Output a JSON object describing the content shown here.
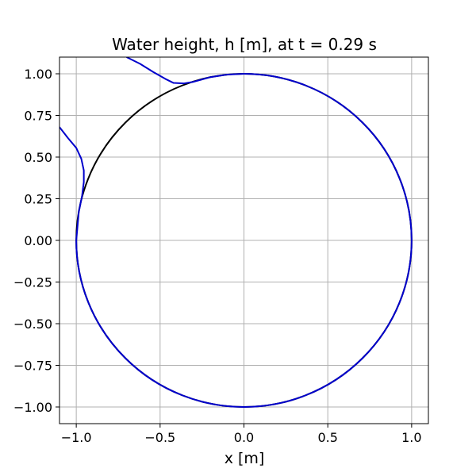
{
  "chart_data": {
    "type": "line",
    "title": "Water height, h [m], at t = 0.29 s",
    "xlabel": "x [m]",
    "ylabel": "",
    "xlim": [
      -1.1,
      1.1
    ],
    "ylim": [
      -1.1,
      1.1
    ],
    "grid": true,
    "x_ticks": [
      -1.0,
      -0.5,
      0.0,
      0.5,
      1.0
    ],
    "x_tick_labels": [
      "−1.0",
      "−0.5",
      "0.0",
      "0.5",
      "1.0"
    ],
    "y_ticks": [
      1.0,
      0.75,
      0.5,
      0.25,
      0.0,
      -0.25,
      -0.5,
      -0.75,
      -1.0
    ],
    "y_tick_labels": [
      "1.00",
      "0.75",
      "0.50",
      "0.25",
      "0.00",
      "−0.25",
      "−0.50",
      "−0.75",
      "−1.00"
    ],
    "series": [
      {
        "color": "#000000",
        "shape": "circle",
        "center": [
          0,
          0
        ],
        "radius": 1.0
      },
      {
        "color": "#0000cc",
        "segments": [
          [
            [
              -0.7,
              1.1
            ],
            [
              -0.62,
              1.06
            ],
            [
              -0.54,
              1.01
            ],
            [
              -0.47,
              0.97
            ],
            [
              -0.42,
              0.945
            ],
            [
              -0.36,
              0.942
            ],
            [
              -0.3,
              0.952
            ],
            [
              -0.2,
              0.98
            ],
            [
              -0.1,
              0.995
            ],
            [
              0.0,
              1.0
            ]
          ],
          [
            [
              -1.1,
              0.68
            ],
            [
              -1.05,
              0.615
            ],
            [
              -1.0,
              0.555
            ],
            [
              -0.97,
              0.49
            ],
            [
              -0.955,
              0.42
            ],
            [
              -0.955,
              0.35
            ],
            [
              -0.965,
              0.27
            ],
            [
              -0.985,
              0.17
            ],
            [
              -1.0,
              0.0
            ]
          ]
        ],
        "arcs": [
          {
            "center": [
              0,
              0
            ],
            "radius": 1.0,
            "from_deg": 90,
            "to_deg": -270,
            "direction": "cw_from_top_to_left"
          }
        ]
      }
    ]
  }
}
